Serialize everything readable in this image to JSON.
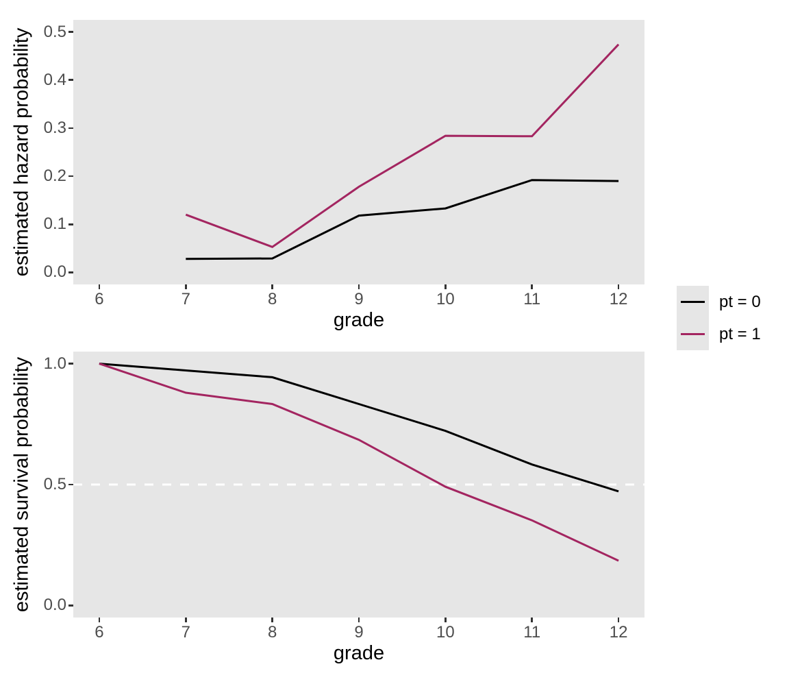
{
  "figure": {
    "background": "#FFFFFF",
    "panel_background": "#E6E6E6",
    "tick_label_color": "#4D4D4D",
    "tick_mark_color": "#333333",
    "axis_title_color": "#000000"
  },
  "legend": {
    "position": "right",
    "items": [
      {
        "label": "pt = 0",
        "color": "#000000"
      },
      {
        "label": "pt = 1",
        "color": "#A32560"
      }
    ]
  },
  "chart_data": [
    {
      "type": "line",
      "title": "",
      "xlabel": "grade",
      "ylabel": "estimated hazard probability",
      "xlim": [
        6,
        12
      ],
      "ylim": [
        0,
        0.5
      ],
      "grid": false,
      "x_axis": {
        "title": "grade",
        "ticks": [
          {
            "v": 6,
            "label": "6"
          },
          {
            "v": 7,
            "label": "7"
          },
          {
            "v": 8,
            "label": "8"
          },
          {
            "v": 9,
            "label": "9"
          },
          {
            "v": 10,
            "label": "10"
          },
          {
            "v": 11,
            "label": "11"
          },
          {
            "v": 12,
            "label": "12"
          }
        ]
      },
      "y_axis": {
        "title": "estimated hazard probability",
        "ticks": [
          {
            "v": 0.0,
            "label": "0.0"
          },
          {
            "v": 0.1,
            "label": "0.1"
          },
          {
            "v": 0.2,
            "label": "0.2"
          },
          {
            "v": 0.3,
            "label": "0.3"
          },
          {
            "v": 0.4,
            "label": "0.4"
          },
          {
            "v": 0.5,
            "label": "0.5"
          }
        ]
      },
      "series": [
        {
          "name": "pt = 0",
          "color": "#000000",
          "x": [
            7,
            8,
            9,
            10,
            11,
            12
          ],
          "y": [
            0.028,
            0.029,
            0.118,
            0.133,
            0.192,
            0.19
          ]
        },
        {
          "name": "pt = 1",
          "color": "#A32560",
          "x": [
            7,
            8,
            9,
            10,
            11,
            12
          ],
          "y": [
            0.12,
            0.053,
            0.178,
            0.284,
            0.283,
            0.474
          ]
        }
      ]
    },
    {
      "type": "line",
      "title": "",
      "xlabel": "grade",
      "ylabel": "estimated survival probability",
      "xlim": [
        6,
        12
      ],
      "ylim": [
        0,
        1
      ],
      "grid": false,
      "reference_line": {
        "y": 0.5,
        "style": "dashed",
        "color": "#FFFFFF"
      },
      "x_axis": {
        "title": "grade",
        "ticks": [
          {
            "v": 6,
            "label": "6"
          },
          {
            "v": 7,
            "label": "7"
          },
          {
            "v": 8,
            "label": "8"
          },
          {
            "v": 9,
            "label": "9"
          },
          {
            "v": 10,
            "label": "10"
          },
          {
            "v": 11,
            "label": "11"
          },
          {
            "v": 12,
            "label": "12"
          }
        ]
      },
      "y_axis": {
        "title": "estimated survival probability",
        "ticks": [
          {
            "v": 0.0,
            "label": "0.0"
          },
          {
            "v": 0.5,
            "label": "0.5"
          },
          {
            "v": 1.0,
            "label": "1.0"
          }
        ]
      },
      "series": [
        {
          "name": "pt = 0",
          "color": "#000000",
          "x": [
            6,
            7,
            8,
            9,
            10,
            11,
            12
          ],
          "y": [
            1.0,
            0.972,
            0.944,
            0.833,
            0.722,
            0.583,
            0.472
          ]
        },
        {
          "name": "pt = 1",
          "color": "#A32560",
          "x": [
            6,
            7,
            8,
            9,
            10,
            11,
            12
          ],
          "y": [
            1.0,
            0.88,
            0.833,
            0.685,
            0.491,
            0.352,
            0.185
          ]
        }
      ]
    }
  ]
}
